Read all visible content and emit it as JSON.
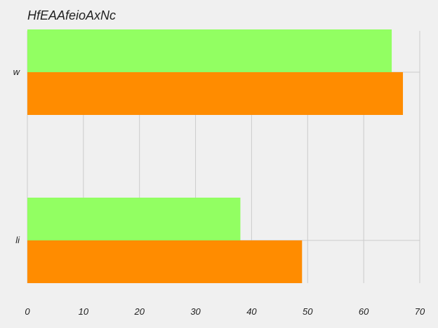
{
  "chart_data": {
    "type": "bar",
    "orientation": "horizontal",
    "title": "HfEAAfeioAxNc",
    "xlabel": "",
    "ylabel": "",
    "categories": [
      "w",
      "li"
    ],
    "series": [
      {
        "values": [
          65,
          38
        ],
        "color": "#92ff62"
      },
      {
        "values": [
          67,
          49
        ],
        "color": "#ff8c00"
      }
    ],
    "xlim": [
      0,
      70
    ],
    "xticks": [
      0,
      10,
      20,
      30,
      40,
      50,
      60,
      70
    ],
    "grid": true,
    "legend": "none"
  },
  "colors": {
    "background": "#f0f0f0",
    "grid": "#cbcbcb",
    "text": "#222222"
  }
}
